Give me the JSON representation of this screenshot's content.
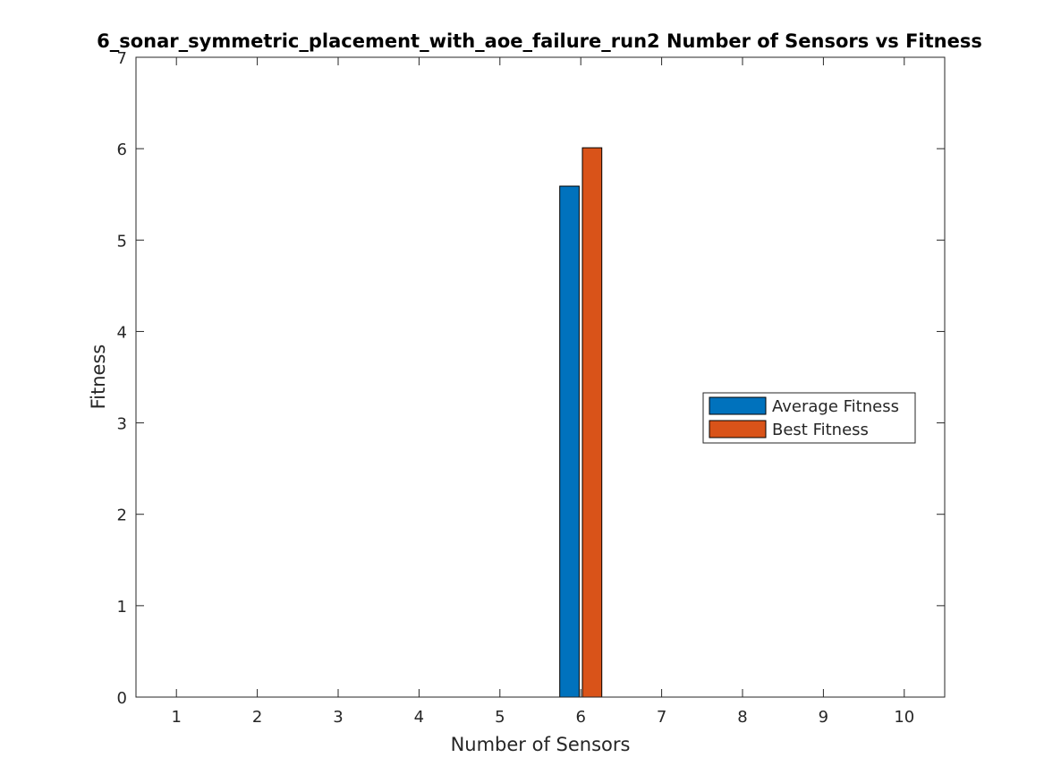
{
  "chart_data": {
    "type": "bar",
    "title": "6_sonar_symmetric_placement_with_aoe_failure_run2 Number of Sensors vs Fitness",
    "xlabel": "Number of Sensors",
    "ylabel": "Fitness",
    "categories": [
      1,
      2,
      3,
      4,
      5,
      6,
      7,
      8,
      9,
      10
    ],
    "xlim": [
      0.5,
      10.5
    ],
    "ylim": [
      0,
      7
    ],
    "yticks": [
      0,
      1,
      2,
      3,
      4,
      5,
      6,
      7
    ],
    "grid": false,
    "legend_location": "east",
    "series": [
      {
        "name": "Average Fitness",
        "color": "#0072bd",
        "values": [
          0,
          0,
          0,
          0,
          0,
          5.59,
          0,
          0,
          0,
          0
        ]
      },
      {
        "name": "Best Fitness",
        "color": "#d95319",
        "values": [
          0,
          0,
          0,
          0,
          0,
          6.01,
          0,
          0,
          0,
          0
        ]
      }
    ]
  }
}
